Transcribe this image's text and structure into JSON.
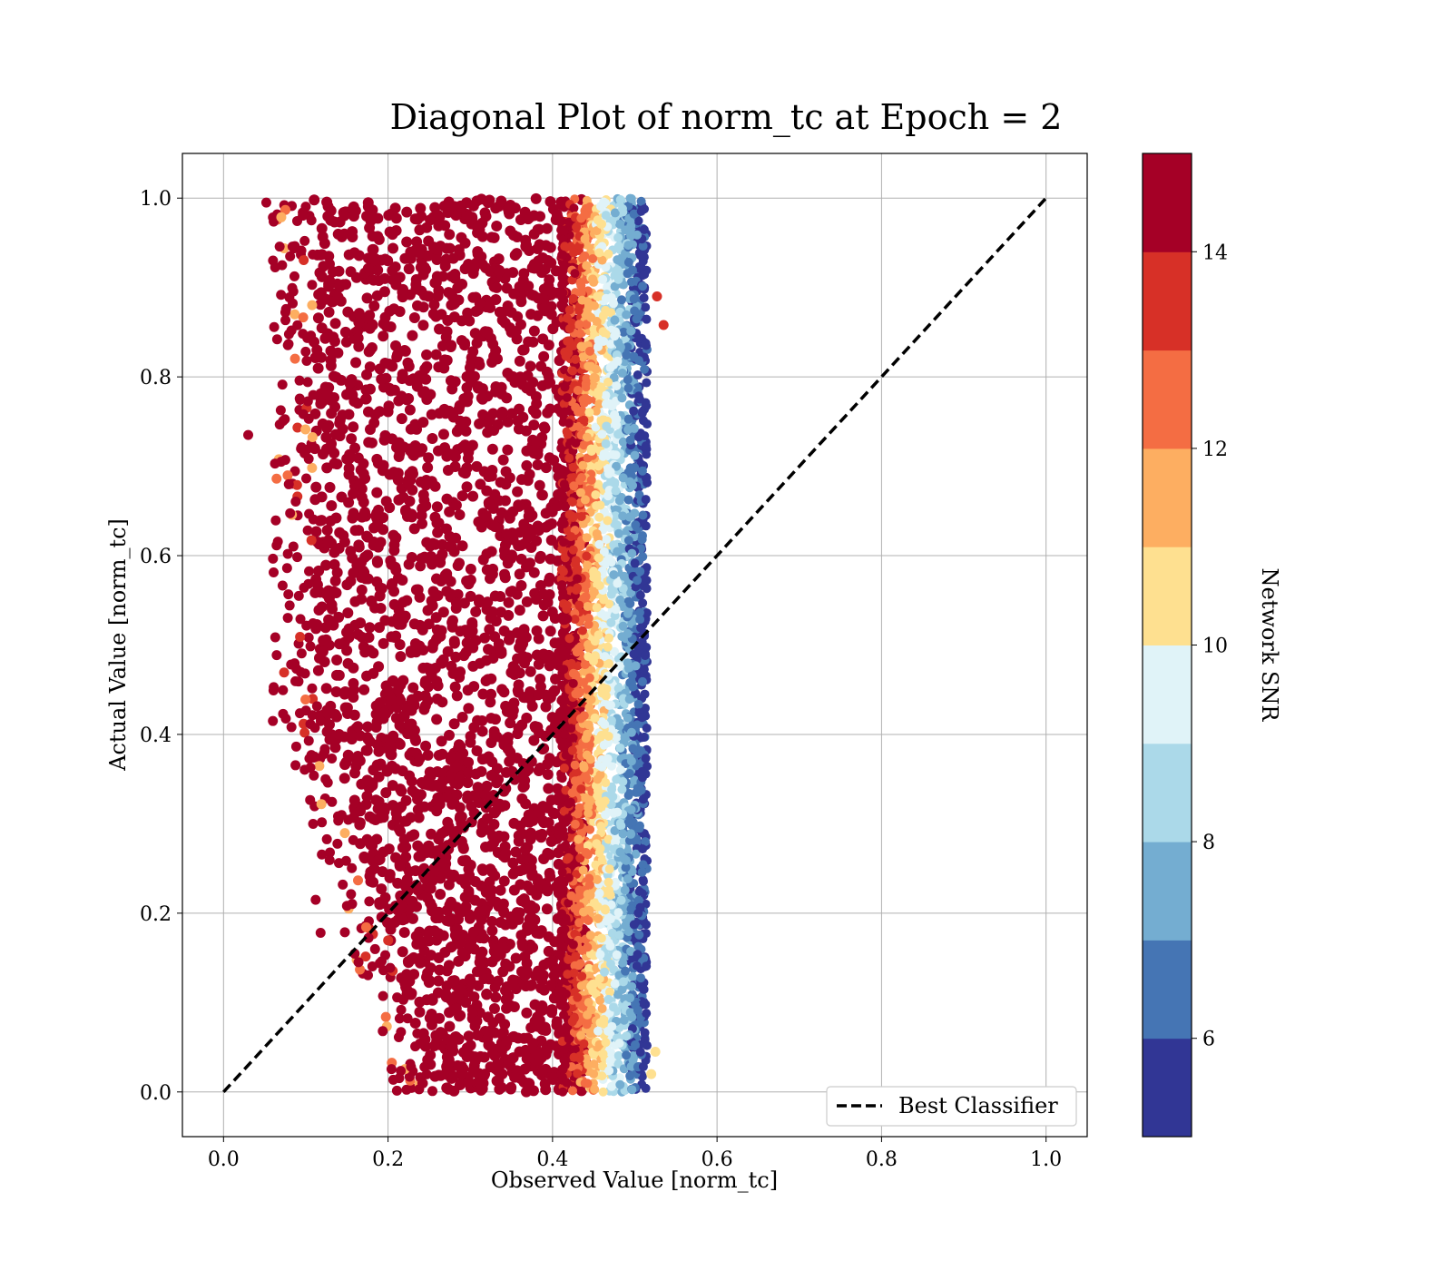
{
  "chart_data": {
    "type": "scatter",
    "title": "Diagonal Plot of norm_tc at Epoch = 2",
    "xlabel": "Observed Value [norm_tc]",
    "ylabel": "Actual Value [norm_tc]",
    "xlim": [
      -0.05,
      1.05
    ],
    "ylim": [
      -0.05,
      1.05
    ],
    "x_ticks": [
      0.0,
      0.2,
      0.4,
      0.6,
      0.8,
      1.0
    ],
    "y_ticks": [
      0.0,
      0.2,
      0.4,
      0.6,
      0.8,
      1.0
    ],
    "x_tick_labels": [
      "0.0",
      "0.2",
      "0.4",
      "0.6",
      "0.8",
      "1.0"
    ],
    "y_tick_labels": [
      "0.0",
      "0.2",
      "0.4",
      "0.6",
      "0.8",
      "1.0"
    ],
    "grid": true,
    "reference_line": {
      "name": "Best Classifier",
      "x": [
        0.0,
        1.0
      ],
      "y": [
        0.0,
        1.0
      ],
      "style": "dashed",
      "color": "#000000"
    },
    "legend": {
      "position": "lower-right",
      "entries": [
        "Best Classifier"
      ]
    },
    "scatter_summary": {
      "x_range": [
        0.03,
        0.54
      ],
      "y_range": [
        0.0,
        1.0
      ],
      "bulk_x_range": [
        0.12,
        0.44
      ],
      "high_snr_edge_x": 0.44,
      "low_snr_edge_x": 0.51,
      "color_by": "Network SNR"
    },
    "colorbar": {
      "label": "Network SNR",
      "range": [
        5,
        15
      ],
      "ticks": [
        6,
        8,
        10,
        12,
        14
      ],
      "tick_labels": [
        "6",
        "8",
        "10",
        "12",
        "14"
      ],
      "colors": [
        "#313695",
        "#4575b4",
        "#74add1",
        "#abd9e9",
        "#e0f3f8",
        "#fee090",
        "#fdae61",
        "#f46d43",
        "#d73027",
        "#a50026"
      ]
    }
  }
}
